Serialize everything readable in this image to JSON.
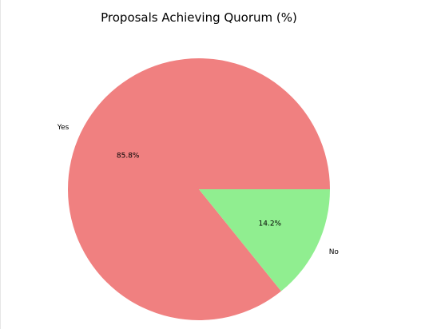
{
  "chart_data": {
    "type": "pie",
    "title": "Proposals Achieving Quorum (%)",
    "categories": [
      "Yes",
      "No"
    ],
    "values": [
      85.8,
      14.2
    ],
    "value_labels": [
      "85.8%",
      "14.2%"
    ],
    "colors": [
      "#f08080",
      "#90ee90"
    ],
    "start_angle_deg": 0,
    "direction": "counterclockwise",
    "legend": "none"
  }
}
